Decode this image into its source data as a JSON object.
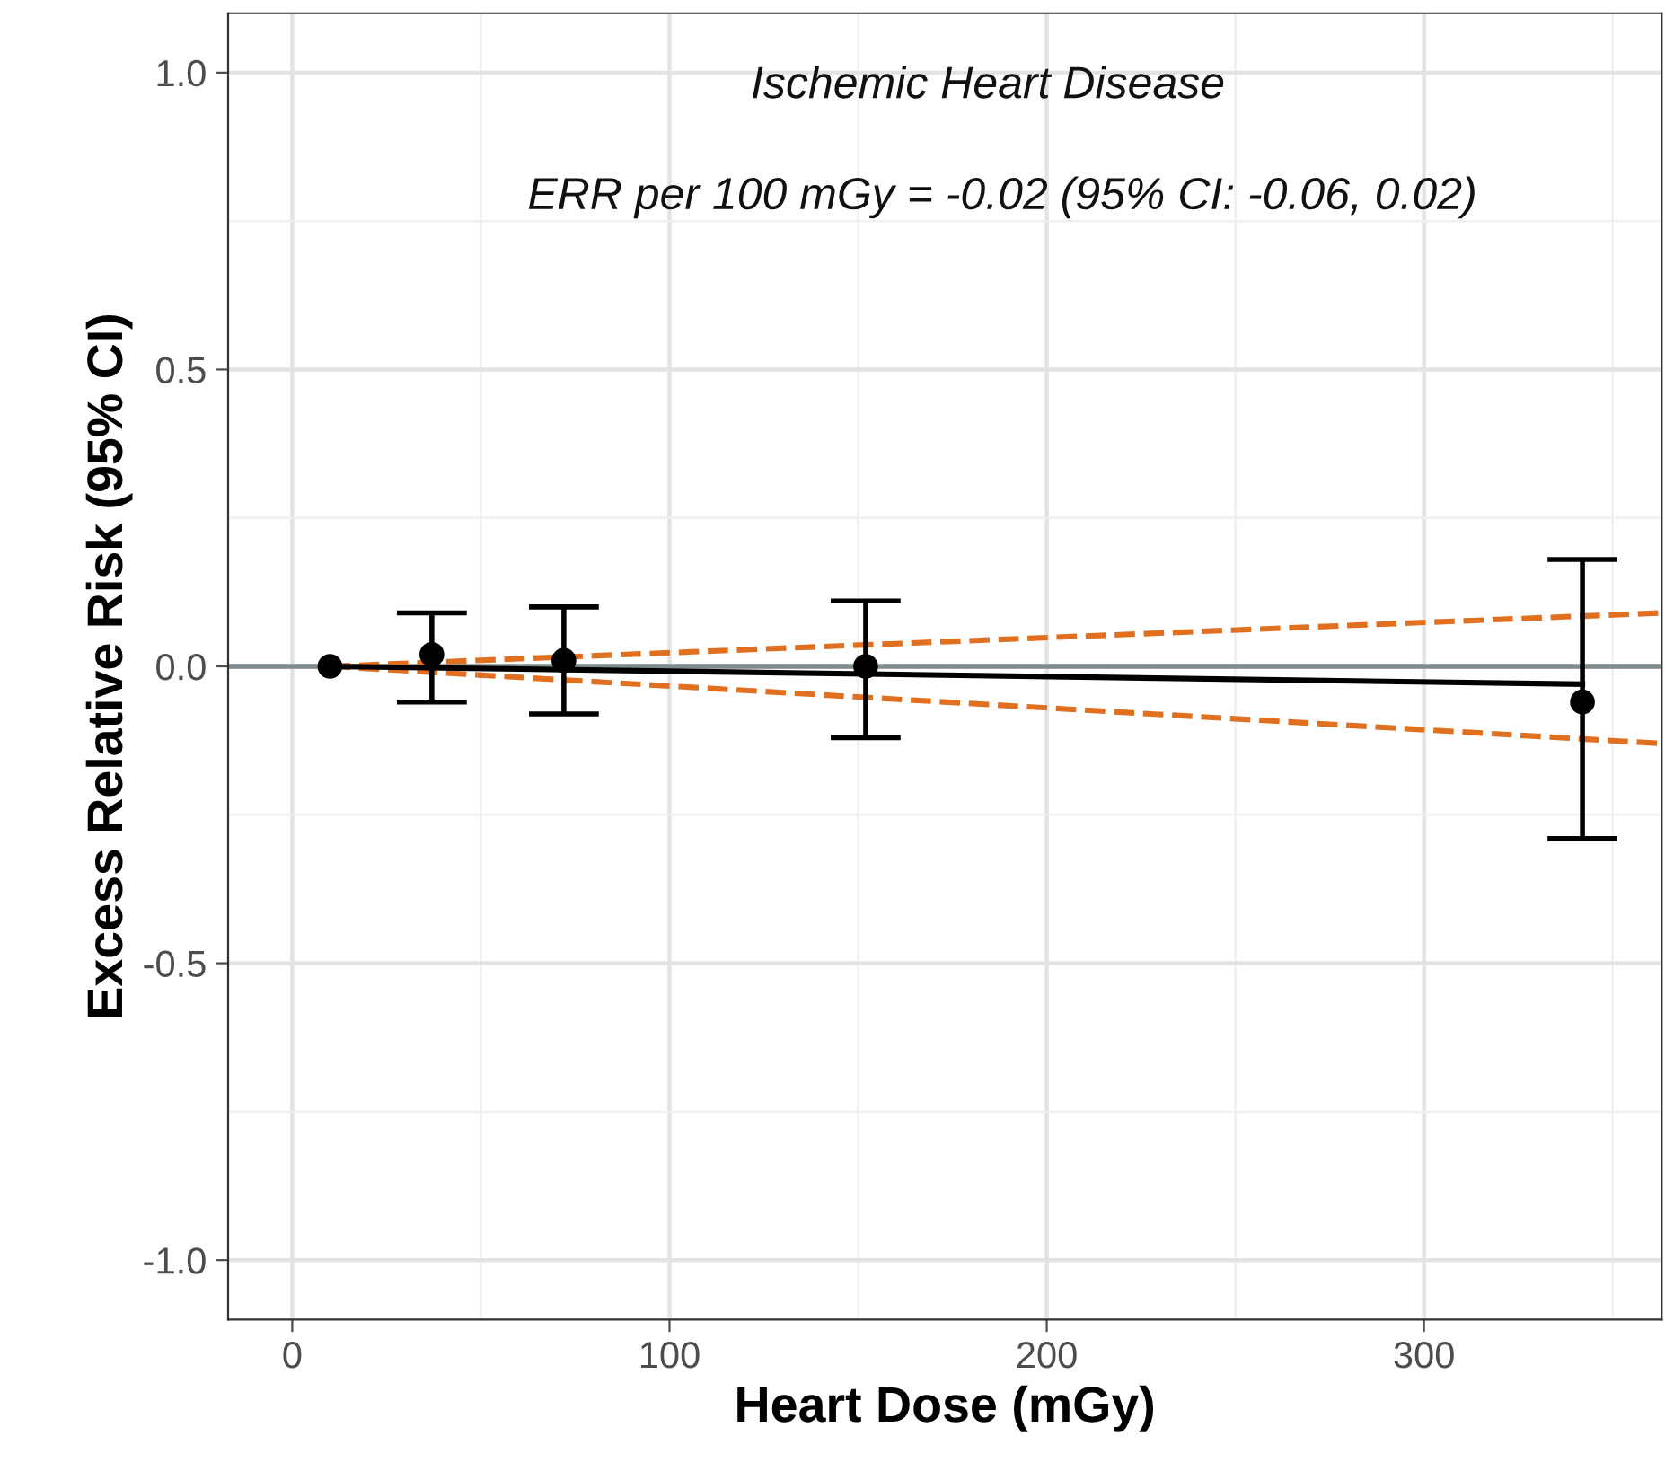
{
  "chart_data": {
    "type": "scatter",
    "xlabel": "Heart Dose (mGy)",
    "ylabel": "Excess Relative Risk (95% CI)",
    "annotations": [
      "Ischemic Heart Disease",
      "ERR per 100 mGy = -0.02 (95% CI: -0.06, 0.02)"
    ],
    "xlim": [
      -17,
      363
    ],
    "xticks": [
      0,
      100,
      200,
      300
    ],
    "ylim": [
      -1.1,
      1.1
    ],
    "yticks": [
      {
        "value": -1,
        "label": "-1.0"
      },
      {
        "value": -0.5,
        "label": "-0.5"
      },
      {
        "value": 0,
        "label": "0.0"
      },
      {
        "value": 0.5,
        "label": "0.5"
      },
      {
        "value": 1,
        "label": "1.0"
      }
    ],
    "grid": true,
    "legend": false,
    "ref_lines": [
      {
        "axis": "y",
        "value": 0,
        "color": "#7f8c8d"
      }
    ],
    "series": [
      {
        "type": "line",
        "color": "#e07020",
        "line_style": "dashed",
        "marker": "none",
        "x": [
          10,
          363
        ],
        "values": [
          0,
          0.09
        ]
      },
      {
        "type": "line",
        "color": "#e07020",
        "line_style": "dashed",
        "marker": "none",
        "x": [
          10,
          363
        ],
        "values": [
          0,
          -0.13
        ]
      },
      {
        "type": "line",
        "color": "#000000",
        "line_style": "solid",
        "marker": "none",
        "x": [
          10,
          342
        ],
        "values": [
          0,
          -0.03
        ]
      },
      {
        "color": "#000000",
        "marker": "circle",
        "x": [
          10,
          37,
          72,
          152,
          342
        ],
        "values": [
          0,
          0.02,
          0.01,
          0.0,
          -0.06
        ],
        "errors": [
          null,
          [
            -0.06,
            0.09
          ],
          [
            -0.08,
            0.1
          ],
          [
            -0.12,
            0.11
          ],
          [
            -0.29,
            0.18
          ]
        ]
      }
    ]
  }
}
